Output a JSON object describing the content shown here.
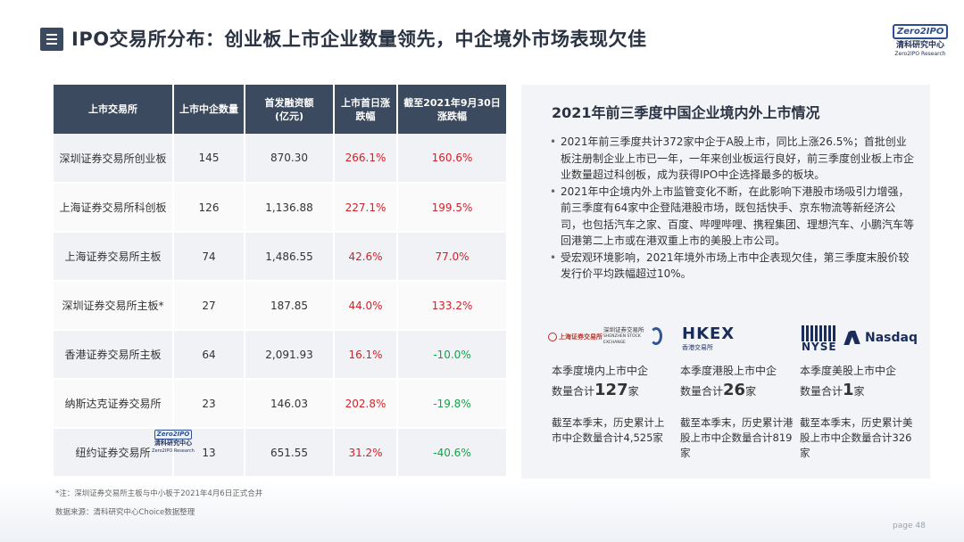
{
  "header": {
    "title": "IPO交易所分布：创业板上市企业数量领先，中企境外市场表现欠佳",
    "logo": {
      "box": "Zero2IPO",
      "cn": "清科研究中心",
      "en": "Zero2IPO Research"
    }
  },
  "table": {
    "headers": [
      "上市交易所",
      "上市中企数量",
      "首发融资额\n(亿元)",
      "上市首日涨\n跌幅",
      "截至2021年9月30日\n涨跌幅"
    ],
    "rows": [
      {
        "exchange": "深圳证券交易所创业板",
        "count": "145",
        "amount": "870.30",
        "first_day": "266.1%",
        "to_date": "160.6%"
      },
      {
        "exchange": "上海证券交易所科创板",
        "count": "126",
        "amount": "1,136.88",
        "first_day": "227.1%",
        "to_date": "199.5%"
      },
      {
        "exchange": "上海证券交易所主板",
        "count": "74",
        "amount": "1,486.55",
        "first_day": "42.6%",
        "to_date": "77.0%"
      },
      {
        "exchange": "深圳证券交易所主板*",
        "count": "27",
        "amount": "187.85",
        "first_day": "44.0%",
        "to_date": "133.2%"
      },
      {
        "exchange": "香港证券交易所主板",
        "count": "64",
        "amount": "2,091.93",
        "first_day": "16.1%",
        "to_date": "-10.0%"
      },
      {
        "exchange": "纳斯达克证券交易所",
        "count": "23",
        "amount": "146.03",
        "first_day": "202.8%",
        "to_date": "-19.8%"
      },
      {
        "exchange": "纽约证券交易所",
        "count": "13",
        "amount": "651.55",
        "first_day": "31.2%",
        "to_date": "-40.6%"
      }
    ],
    "watermark": {
      "box": "Zero2IPO",
      "cn": "清科研究中心",
      "en": "Zero2IPO Research"
    }
  },
  "notes": {
    "footnote": "*注：深圳证券交易所主板与中小板于2021年4月6日正式合并",
    "source": "数据来源：清科研究中心Choice数据整理"
  },
  "panel": {
    "title": "2021年前三季度中国企业境内外上市情况",
    "bullets": [
      "2021年前三季度共计372家中企于A股上市，同比上涨26.5%；首批创业板注册制企业上市已一年，一年来创业板运行良好，前三季度创业板上市企业数量超过科创板，成为获得IPO中企选择最多的板块。",
      "2021年中企境内外上市监管变化不断，在此影响下港股市场吸引力增强，前三季度有64家中企登陆港股市场，既包括快手、京东物流等新经济公司，也包括汽车之家、百度、哔哩哔哩、携程集团、理想汽车、小鹏汽车等回港第二上市或在港双重上市的美股上市公司。",
      "受宏观环境影响，2021年境外市场上市中企表现欠佳，第三季度末股价较发行价平均跌幅超过10%。"
    ],
    "logos": {
      "sse": "上海证券交易所",
      "szse_cn": "深圳证券交易所",
      "szse_en": "SHENZHEN STOCK EXCHANGE",
      "hkex": "HKEX",
      "hkex_cn": "香港交易所",
      "nyse": "NYSE",
      "nasdaq": "Nasdaq"
    },
    "stats": [
      {
        "line1": "本季度境内上市中企",
        "pre": "数量合计",
        "num": "127",
        "post": "家",
        "sub": "截至本季末，历史累计上市中企数量合计4,525家"
      },
      {
        "line1": "本季度港股上市中企",
        "pre": "数量合计",
        "num": "26",
        "post": "家",
        "sub": "截至本季末，历史累计港股上市中企数量合计819家"
      },
      {
        "line1": "本季度美股上市中企",
        "pre": "数量合计",
        "num": "1",
        "post": "家",
        "sub": "截至本季末，历史累计美股上市中企数量合计326家"
      }
    ]
  },
  "footer": {
    "page": "page  48"
  }
}
